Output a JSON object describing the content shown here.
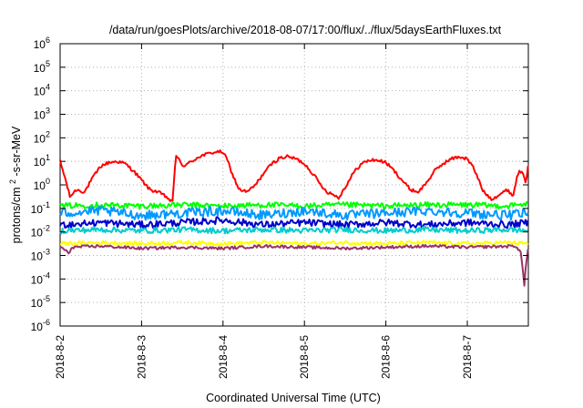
{
  "chart_data": {
    "type": "line",
    "title": "/data/run/goesPlots/archive/2018-08-07/17:00/flux/../flux/5daysEarthFluxes.txt",
    "xlabel": "Coordinated Universal Time (UTC)",
    "ylabel_prefix": "protons/cm",
    "ylabel_sup": "2",
    "ylabel_suffix": "-s-sr-MeV",
    "yscale": "log",
    "ylim_exp": [
      -6,
      6
    ],
    "xlim": [
      0,
      5.75
    ],
    "grid": true,
    "x_ticks": [
      {
        "x": 0,
        "label": "2018-8-2"
      },
      {
        "x": 1,
        "label": "2018-8-3"
      },
      {
        "x": 2,
        "label": "2018-8-4"
      },
      {
        "x": 3,
        "label": "2018-8-5"
      },
      {
        "x": 4,
        "label": "2018-8-6"
      },
      {
        "x": 5,
        "label": "2018-8-7"
      }
    ],
    "y_ticks": [
      {
        "exp": -6,
        "base": "10",
        "sup": "-6"
      },
      {
        "exp": -5,
        "base": "10",
        "sup": "-5"
      },
      {
        "exp": -4,
        "base": "10",
        "sup": "-4"
      },
      {
        "exp": -3,
        "base": "10",
        "sup": "-3"
      },
      {
        "exp": -2,
        "base": "10",
        "sup": "-2"
      },
      {
        "exp": -1,
        "base": "10",
        "sup": "-1"
      },
      {
        "exp": 0,
        "base": "10",
        "sup": "0"
      },
      {
        "exp": 1,
        "base": "10",
        "sup": "1"
      },
      {
        "exp": 2,
        "base": "10",
        "sup": "2"
      },
      {
        "exp": 3,
        "base": "10",
        "sup": "3"
      },
      {
        "exp": 4,
        "base": "10",
        "sup": "4"
      },
      {
        "exp": 5,
        "base": "10",
        "sup": "5"
      },
      {
        "exp": 6,
        "base": "10",
        "sup": "6"
      }
    ],
    "series": [
      {
        "color": "#ff0000",
        "log10_values": [
          [
            0.0,
            1.0
          ],
          [
            0.06,
            0.3
          ],
          [
            0.12,
            -0.5
          ],
          [
            0.2,
            -0.2
          ],
          [
            0.3,
            -0.3
          ],
          [
            0.4,
            0.3
          ],
          [
            0.5,
            0.8
          ],
          [
            0.6,
            0.95
          ],
          [
            0.7,
            1.0
          ],
          [
            0.8,
            0.9
          ],
          [
            0.9,
            0.6
          ],
          [
            1.0,
            0.2
          ],
          [
            1.1,
            -0.2
          ],
          [
            1.2,
            -0.3
          ],
          [
            1.3,
            -0.5
          ],
          [
            1.38,
            -0.75
          ],
          [
            1.42,
            1.3
          ],
          [
            1.5,
            0.8
          ],
          [
            1.6,
            0.95
          ],
          [
            1.7,
            1.2
          ],
          [
            1.8,
            1.3
          ],
          [
            1.9,
            1.4
          ],
          [
            2.0,
            1.4
          ],
          [
            2.06,
            1.0
          ],
          [
            2.12,
            0.4
          ],
          [
            2.2,
            -0.2
          ],
          [
            2.3,
            -0.3
          ],
          [
            2.4,
            0.0
          ],
          [
            2.5,
            0.5
          ],
          [
            2.6,
            0.9
          ],
          [
            2.7,
            1.15
          ],
          [
            2.8,
            1.2
          ],
          [
            2.9,
            1.1
          ],
          [
            3.0,
            0.9
          ],
          [
            3.1,
            0.5
          ],
          [
            3.2,
            0.0
          ],
          [
            3.28,
            -0.3
          ],
          [
            3.35,
            -0.4
          ],
          [
            3.42,
            -0.55
          ],
          [
            3.5,
            -0.1
          ],
          [
            3.6,
            0.5
          ],
          [
            3.7,
            0.9
          ],
          [
            3.8,
            1.05
          ],
          [
            3.9,
            1.05
          ],
          [
            4.0,
            0.95
          ],
          [
            4.1,
            0.6
          ],
          [
            4.2,
            0.2
          ],
          [
            4.3,
            -0.2
          ],
          [
            4.4,
            -0.3
          ],
          [
            4.5,
            0.1
          ],
          [
            4.6,
            0.6
          ],
          [
            4.7,
            0.9
          ],
          [
            4.8,
            1.1
          ],
          [
            4.9,
            1.2
          ],
          [
            5.0,
            1.1
          ],
          [
            5.08,
            0.7
          ],
          [
            5.14,
            0.2
          ],
          [
            5.2,
            -0.3
          ],
          [
            5.3,
            -0.6
          ],
          [
            5.4,
            -0.4
          ],
          [
            5.5,
            -0.2
          ],
          [
            5.56,
            -0.5
          ],
          [
            5.62,
            0.5
          ],
          [
            5.68,
            0.6
          ],
          [
            5.72,
            0.1
          ],
          [
            5.75,
            1.0
          ]
        ]
      },
      {
        "color": "#00ff00",
        "log10_values": [
          [
            0.0,
            -0.9
          ],
          [
            0.5,
            -0.85
          ],
          [
            1.0,
            -0.9
          ],
          [
            1.5,
            -0.85
          ],
          [
            2.0,
            -0.9
          ],
          [
            2.5,
            -0.85
          ],
          [
            3.0,
            -0.9
          ],
          [
            3.5,
            -0.85
          ],
          [
            4.0,
            -0.9
          ],
          [
            4.5,
            -0.85
          ],
          [
            5.0,
            -0.85
          ],
          [
            5.5,
            -0.9
          ],
          [
            5.75,
            -0.8
          ]
        ]
      },
      {
        "color": "#0099ff",
        "log10_values": [
          [
            0.0,
            -1.2
          ],
          [
            0.5,
            -1.1
          ],
          [
            1.0,
            -1.3
          ],
          [
            1.5,
            -1.2
          ],
          [
            2.0,
            -1.1
          ],
          [
            2.5,
            -1.3
          ],
          [
            3.0,
            -1.1
          ],
          [
            3.5,
            -1.3
          ],
          [
            4.0,
            -1.2
          ],
          [
            4.5,
            -1.1
          ],
          [
            5.0,
            -1.2
          ],
          [
            5.5,
            -1.3
          ],
          [
            5.75,
            -1.2
          ]
        ]
      },
      {
        "color": "#0000cc",
        "log10_values": [
          [
            0.0,
            -1.7
          ],
          [
            0.5,
            -1.6
          ],
          [
            1.0,
            -1.7
          ],
          [
            1.5,
            -1.6
          ],
          [
            2.0,
            -1.5
          ],
          [
            2.5,
            -1.7
          ],
          [
            3.0,
            -1.6
          ],
          [
            3.5,
            -1.7
          ],
          [
            4.0,
            -1.6
          ],
          [
            4.5,
            -1.7
          ],
          [
            5.0,
            -1.6
          ],
          [
            5.5,
            -1.7
          ],
          [
            5.75,
            -1.6
          ]
        ]
      },
      {
        "color": "#00cccc",
        "log10_values": [
          [
            0.0,
            -1.95
          ],
          [
            0.5,
            -1.9
          ],
          [
            1.0,
            -1.95
          ],
          [
            1.5,
            -1.9
          ],
          [
            2.0,
            -1.95
          ],
          [
            2.5,
            -1.9
          ],
          [
            3.0,
            -1.95
          ],
          [
            3.5,
            -1.9
          ],
          [
            4.0,
            -1.95
          ],
          [
            4.5,
            -1.9
          ],
          [
            5.0,
            -1.95
          ],
          [
            5.5,
            -1.9
          ],
          [
            5.75,
            -1.95
          ]
        ]
      },
      {
        "color": "#ffff00",
        "log10_values": [
          [
            0.0,
            -2.5
          ],
          [
            0.5,
            -2.45
          ],
          [
            1.0,
            -2.5
          ],
          [
            1.5,
            -2.45
          ],
          [
            2.0,
            -2.5
          ],
          [
            2.5,
            -2.45
          ],
          [
            3.0,
            -2.5
          ],
          [
            3.5,
            -2.45
          ],
          [
            4.0,
            -2.5
          ],
          [
            4.5,
            -2.45
          ],
          [
            5.0,
            -2.5
          ],
          [
            5.5,
            -2.45
          ],
          [
            5.75,
            -2.5
          ]
        ]
      },
      {
        "color": "#993366",
        "log10_values": [
          [
            0.0,
            -2.65
          ],
          [
            0.08,
            -2.8
          ],
          [
            0.1,
            -3.0
          ],
          [
            0.14,
            -2.65
          ],
          [
            0.5,
            -2.6
          ],
          [
            1.0,
            -2.7
          ],
          [
            1.5,
            -2.65
          ],
          [
            2.0,
            -2.7
          ],
          [
            2.5,
            -2.6
          ],
          [
            3.0,
            -2.65
          ],
          [
            3.5,
            -2.7
          ],
          [
            4.0,
            -2.65
          ],
          [
            4.5,
            -2.6
          ],
          [
            5.0,
            -2.65
          ],
          [
            5.6,
            -2.6
          ],
          [
            5.66,
            -2.9
          ],
          [
            5.7,
            -4.3
          ],
          [
            5.72,
            -3.3
          ],
          [
            5.75,
            -2.65
          ]
        ]
      }
    ]
  }
}
